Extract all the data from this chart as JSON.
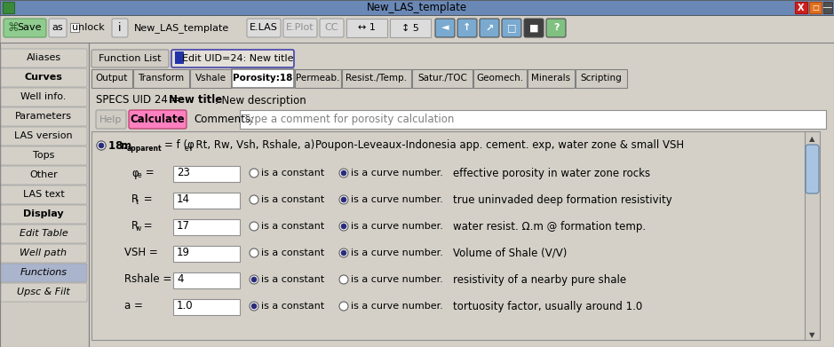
{
  "title_text": "New_LAS_template",
  "window_bg": "#d4d0c8",
  "left_nav": [
    "Aliases",
    "Curves",
    "Well info.",
    "Parameters",
    "LAS version",
    "Tops",
    "Other",
    "LAS text",
    "Display",
    "Edit Table",
    "Well path",
    "Functions",
    "Upsc & Filt"
  ],
  "left_nav_bold": [
    "Curves",
    "Display"
  ],
  "left_nav_italic": [
    "Edit Table",
    "Well path",
    "Functions",
    "Upsc & Filt"
  ],
  "left_nav_selected": "Functions",
  "tabs_main": [
    "Output",
    "Transform",
    "Vshale",
    "Porosity:18",
    "Permeab.",
    "Resist./Temp.",
    "Satur./TOC",
    "Geomech.",
    "Minerals",
    "Scripting"
  ],
  "tab_active_main": "Porosity:18",
  "calculate_btn_color": "#ff80c0",
  "comments_placeholder": "Type a comment for porosity calculation",
  "row_labels": [
    "φe =",
    "Rt =",
    "Rw =",
    "VSH =",
    "Rshale =",
    "a ="
  ],
  "row_label_main": [
    "φ",
    "R",
    "R",
    "VSH =",
    "Rshale =",
    "a ="
  ],
  "row_label_sub": [
    "e",
    "t",
    "w",
    "",
    "",
    ""
  ],
  "row_values": [
    "23",
    "14",
    "17",
    "19",
    "4",
    "1.0"
  ],
  "row_r1_filled": [
    false,
    false,
    false,
    false,
    true,
    true
  ],
  "row_r2_filled": [
    true,
    true,
    true,
    true,
    false,
    false
  ],
  "row_desc": [
    "effective porosity in water zone rocks",
    "true uninvaded deep formation resistivity",
    "water resist. Ω.m @ formation temp.",
    "Volume of Shale (V/V)",
    "resistivity of a nearby pure shale",
    "tortuosity factor, usually around 1.0"
  ],
  "scrollbar_color": "#a8c4e0",
  "radio_fill": "#2a2a7a"
}
